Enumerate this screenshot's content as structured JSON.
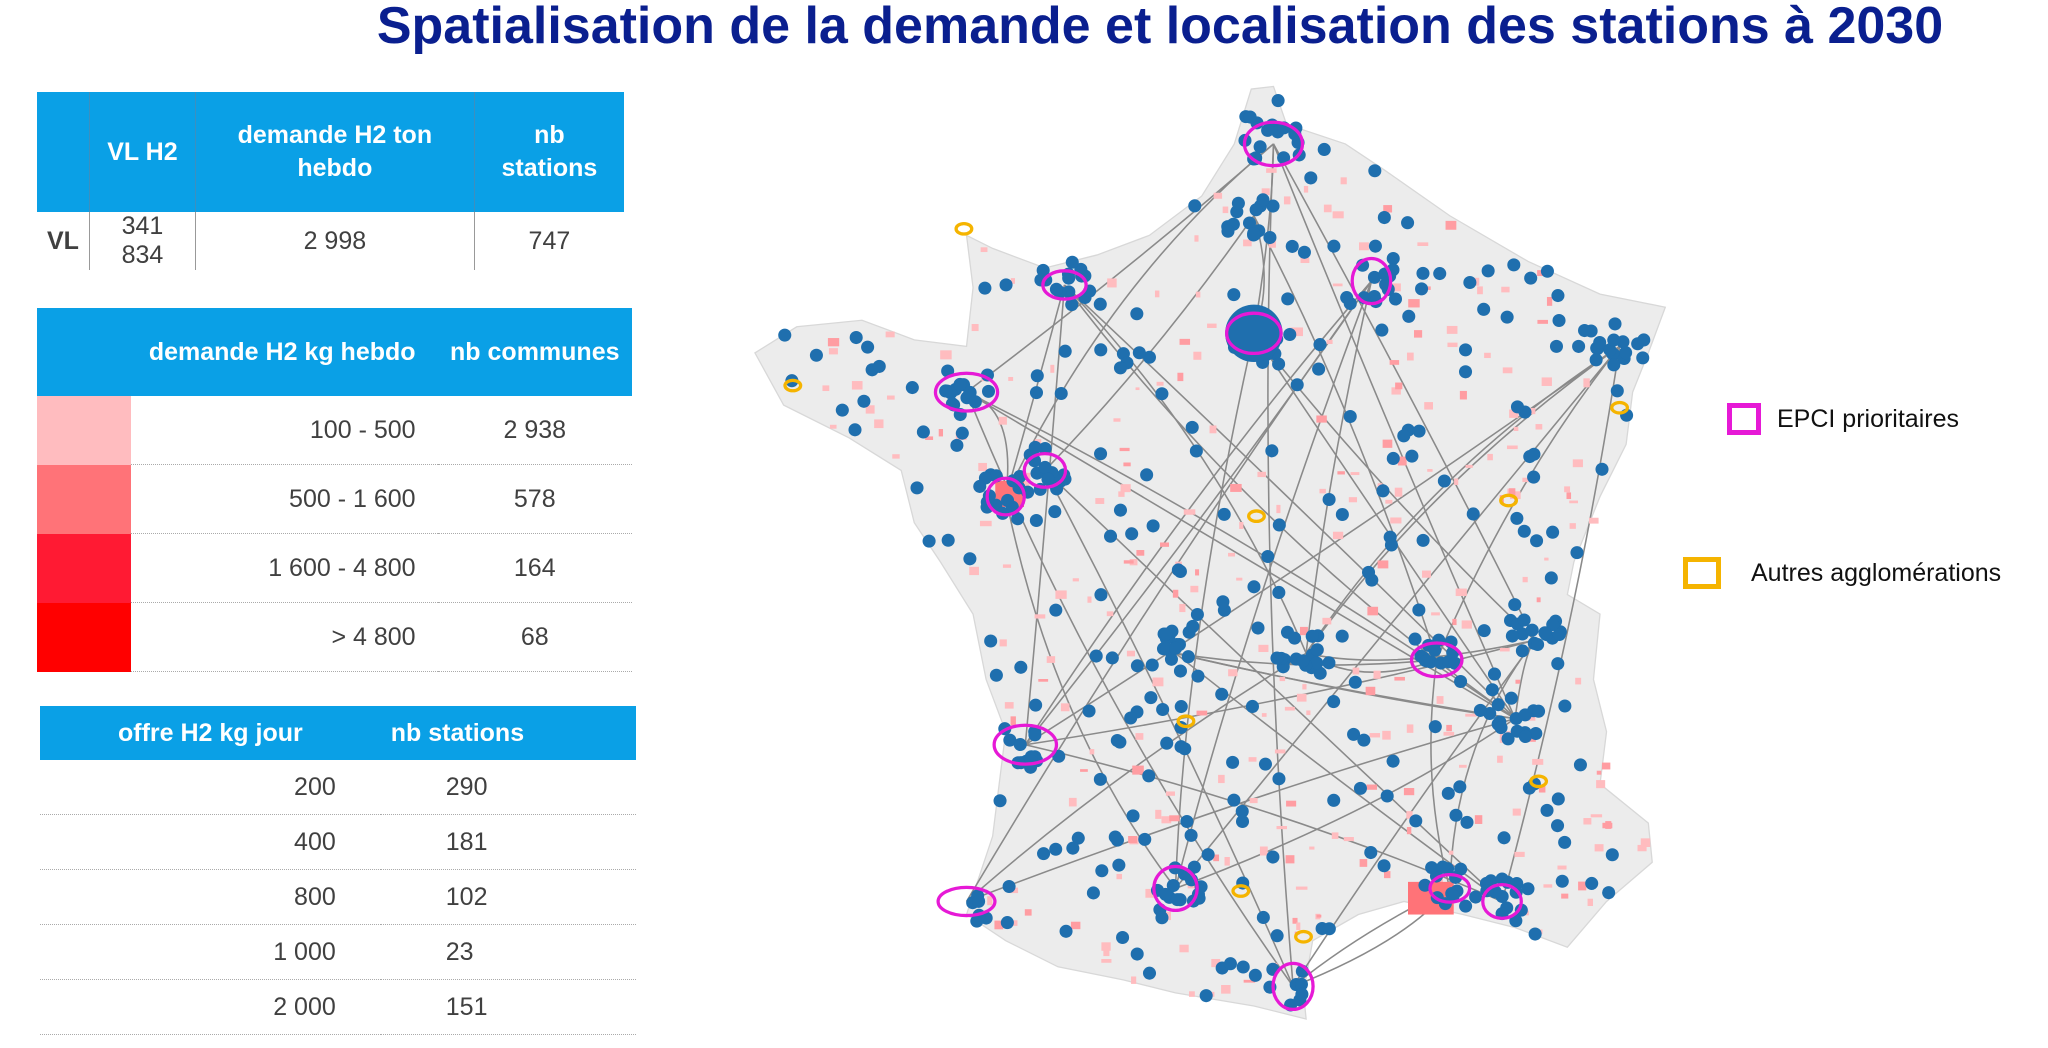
{
  "title": "Spatialisation de la demande et localisation des stations à 2030",
  "table_vehicles": {
    "headers": [
      "",
      "VL H2",
      "demande H2 ton hebdo",
      "nb stations"
    ],
    "row": {
      "label": "VL",
      "vl_h2": "341 834",
      "demande": "2 998",
      "nb_stations": "747"
    }
  },
  "table_demand": {
    "headers": [
      "",
      "demande H2 kg hebdo",
      "nb communes"
    ],
    "rows": [
      {
        "range": "100 - 500",
        "nb": "2 938",
        "color": "#ffbcbf"
      },
      {
        "range": "500 - 1 600",
        "nb": "578",
        "color": "#ff7378"
      },
      {
        "range": "1 600 - 4 800",
        "nb": "164",
        "color": "#ff1a33"
      },
      {
        "range": "> 4 800",
        "nb": "68",
        "color": "#ff0000"
      }
    ]
  },
  "table_supply": {
    "headers": [
      "offre H2 kg jour",
      "nb stations"
    ],
    "rows": [
      {
        "offre": "200",
        "nb": "290"
      },
      {
        "offre": "400",
        "nb": "181"
      },
      {
        "offre": "800",
        "nb": "102"
      },
      {
        "offre": "1 000",
        "nb": "23"
      },
      {
        "offre": "2 000",
        "nb": "151"
      }
    ]
  },
  "legend": {
    "epci": {
      "label": "EPCI prioritaires",
      "color": "#e619d6"
    },
    "autres": {
      "label": "Autres agglomérations",
      "color": "#f5b400"
    }
  },
  "colors": {
    "header": "#0aa0e6",
    "title": "#0a1f8f",
    "station": "#1f6fae",
    "land": "#ececec"
  }
}
